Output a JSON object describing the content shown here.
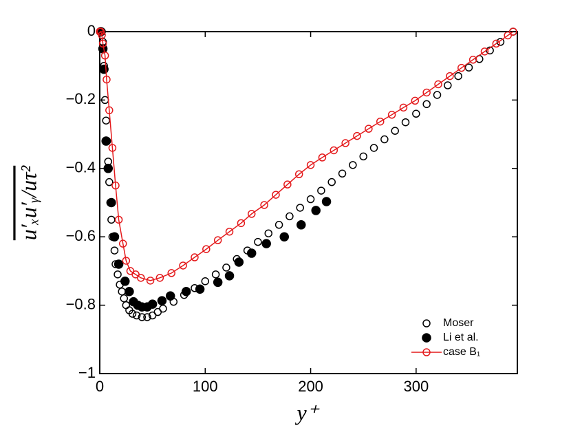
{
  "chart_data": {
    "type": "scatter",
    "xlabel": "y⁺",
    "ylabel": "u′ₓu′ᵧ/uτ²",
    "xlim": [
      0,
      396
    ],
    "xticks": [
      0,
      100,
      200,
      300
    ],
    "ylim": [
      -1,
      0
    ],
    "yticks": [
      {
        "value": -1,
        "label": "−1"
      },
      {
        "value": -0.8,
        "label": "−0.8"
      },
      {
        "value": -0.6,
        "label": "−0.6"
      },
      {
        "value": -0.4,
        "label": "−0.4"
      },
      {
        "value": -0.2,
        "label": "−0.2"
      },
      0
    ],
    "legend": "lower right",
    "series": [
      {
        "name": "Moser",
        "color": "#000000",
        "marker": "open",
        "line": false,
        "x": [
          2,
          3,
          4,
          5,
          6,
          7,
          8,
          9,
          10,
          11,
          12,
          14,
          15,
          17,
          19,
          21,
          23,
          25,
          28,
          31,
          35,
          40,
          45,
          50,
          55,
          60,
          70,
          80,
          90,
          100,
          110,
          120,
          130,
          140,
          150,
          160,
          170,
          180,
          190,
          200,
          210,
          220,
          230,
          240,
          250,
          260,
          270,
          280,
          290,
          300,
          310,
          320,
          330,
          340,
          350,
          360,
          370,
          380,
          392
        ],
        "values": [
          0,
          -0.03,
          -0.1,
          -0.2,
          -0.26,
          -0.32,
          -0.38,
          -0.44,
          -0.5,
          -0.55,
          -0.6,
          -0.64,
          -0.68,
          -0.71,
          -0.74,
          -0.76,
          -0.78,
          -0.8,
          -0.815,
          -0.825,
          -0.83,
          -0.835,
          -0.835,
          -0.83,
          -0.82,
          -0.81,
          -0.79,
          -0.77,
          -0.75,
          -0.73,
          -0.71,
          -0.69,
          -0.665,
          -0.64,
          -0.615,
          -0.59,
          -0.565,
          -0.54,
          -0.515,
          -0.49,
          -0.465,
          -0.44,
          -0.415,
          -0.39,
          -0.365,
          -0.34,
          -0.315,
          -0.29,
          -0.265,
          -0.24,
          -0.212,
          -0.185,
          -0.157,
          -0.13,
          -0.105,
          -0.08,
          -0.055,
          -0.03,
          0
        ]
      },
      {
        "name": "Li et al.",
        "color": "#000000",
        "marker": "filled",
        "line": false,
        "x": [
          1,
          3,
          4,
          6,
          8,
          11,
          14,
          18,
          24,
          28,
          32,
          36,
          40,
          45,
          50,
          59,
          67,
          82,
          95,
          112,
          123,
          132,
          144,
          158,
          175,
          191,
          205,
          215
        ],
        "values": [
          0,
          -0.05,
          -0.11,
          -0.32,
          -0.4,
          -0.5,
          -0.6,
          -0.68,
          -0.73,
          -0.76,
          -0.79,
          -0.8,
          -0.805,
          -0.805,
          -0.797,
          -0.787,
          -0.773,
          -0.76,
          -0.753,
          -0.733,
          -0.714,
          -0.674,
          -0.648,
          -0.62,
          -0.6,
          -0.565,
          -0.523,
          -0.497
        ]
      },
      {
        "name": "case B₁",
        "color": "#e41a1c",
        "marker": "open",
        "line": true,
        "x": [
          0,
          1,
          2,
          3,
          5,
          6.5,
          9,
          12,
          15,
          18,
          22,
          25,
          29,
          34,
          39,
          48,
          57,
          68,
          79,
          90,
          101,
          112,
          123,
          134,
          144,
          156,
          167,
          178,
          189,
          200,
          211,
          222,
          233,
          244,
          255,
          266,
          277,
          288,
          299,
          310,
          321,
          332,
          343,
          354,
          365,
          376,
          387,
          392
        ],
        "values": [
          0,
          0,
          -0.01,
          -0.035,
          -0.07,
          -0.14,
          -0.23,
          -0.34,
          -0.45,
          -0.55,
          -0.62,
          -0.67,
          -0.7,
          -0.71,
          -0.72,
          -0.728,
          -0.72,
          -0.706,
          -0.684,
          -0.66,
          -0.636,
          -0.61,
          -0.585,
          -0.56,
          -0.533,
          -0.507,
          -0.477,
          -0.447,
          -0.417,
          -0.39,
          -0.368,
          -0.347,
          -0.326,
          -0.305,
          -0.284,
          -0.263,
          -0.243,
          -0.222,
          -0.202,
          -0.178,
          -0.154,
          -0.13,
          -0.106,
          -0.082,
          -0.058,
          -0.035,
          -0.011,
          0
        ]
      }
    ]
  }
}
